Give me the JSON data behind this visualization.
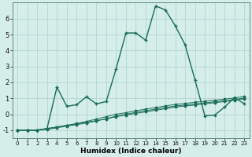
{
  "xlabel": "Humidex (Indice chaleur)",
  "background_color": "#d5eeea",
  "grid_color": "#b8d8d4",
  "line_color": "#1a6b5a",
  "xlim": [
    -0.5,
    23.5
  ],
  "ylim": [
    -1.5,
    7.0
  ],
  "yticks": [
    -1,
    0,
    1,
    2,
    3,
    4,
    5,
    6
  ],
  "xticks": [
    0,
    1,
    2,
    3,
    4,
    5,
    6,
    7,
    8,
    9,
    10,
    11,
    12,
    13,
    14,
    15,
    16,
    17,
    18,
    19,
    20,
    21,
    22,
    23
  ],
  "flat_lines": [
    [
      -1,
      -1,
      -1,
      -0.9,
      -0.8,
      -0.7,
      -0.6,
      -0.5,
      -0.4,
      -0.3,
      -0.15,
      -0.05,
      0.05,
      0.15,
      0.25,
      0.35,
      0.45,
      0.52,
      0.58,
      0.65,
      0.72,
      0.8,
      0.88,
      0.98
    ],
    [
      -1,
      -1,
      -1,
      -0.95,
      -0.85,
      -0.75,
      -0.65,
      -0.55,
      -0.42,
      -0.28,
      -0.12,
      0.0,
      0.12,
      0.22,
      0.32,
      0.42,
      0.52,
      0.58,
      0.65,
      0.72,
      0.78,
      0.85,
      0.92,
      1.02
    ],
    [
      -1,
      -1,
      -1,
      -0.9,
      -0.8,
      -0.7,
      -0.58,
      -0.45,
      -0.3,
      -0.15,
      0.0,
      0.1,
      0.22,
      0.32,
      0.42,
      0.52,
      0.62,
      0.68,
      0.75,
      0.82,
      0.88,
      0.95,
      1.02,
      1.12
    ]
  ],
  "main_line": [
    -1,
    -1,
    -1,
    -0.9,
    1.7,
    0.5,
    0.6,
    1.1,
    0.65,
    0.8,
    2.85,
    5.1,
    5.1,
    4.65,
    6.8,
    6.55,
    5.55,
    4.35,
    2.15,
    -0.1,
    -0.05,
    0.45,
    1.05,
    0.65
  ],
  "x": [
    0,
    1,
    2,
    3,
    4,
    5,
    6,
    7,
    8,
    9,
    10,
    11,
    12,
    13,
    14,
    15,
    16,
    17,
    18,
    19,
    20,
    21,
    22,
    23
  ]
}
